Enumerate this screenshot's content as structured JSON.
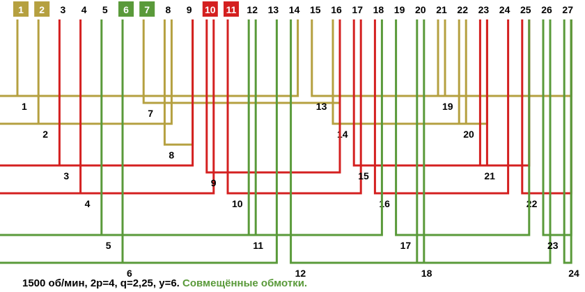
{
  "slots": [
    "1",
    "2",
    "3",
    "4",
    "5",
    "6",
    "7",
    "8",
    "9",
    "10",
    "11",
    "12",
    "13",
    "14",
    "15",
    "16",
    "17",
    "18",
    "19",
    "20",
    "21",
    "22",
    "23",
    "24",
    "25",
    "26",
    "27"
  ],
  "highlighted_slots": {
    "1": "#b5a040",
    "2": "#b5a040",
    "6": "#5a9a3a",
    "7": "#5a9a3a",
    "10": "#d42020",
    "11": "#d42020"
  },
  "colors": {
    "phase_a": "#b5a040",
    "phase_b": "#d42020",
    "phase_c": "#5a9a3a"
  },
  "coils": [
    {
      "label": "1",
      "phase": "a",
      "from": 1,
      "to": 14
    },
    {
      "label": "2",
      "phase": "a",
      "from": 2,
      "to": 8
    },
    {
      "label": "7",
      "phase": "a",
      "from": 7,
      "to": 16
    },
    {
      "label": "8",
      "phase": "a",
      "from": 8,
      "to": 9
    },
    {
      "label": "13",
      "phase": "a",
      "from": 15,
      "to": 21
    },
    {
      "label": "14",
      "phase": "a",
      "from": 16,
      "to": 22
    },
    {
      "label": "19",
      "phase": "a",
      "from": 21,
      "to": 27
    },
    {
      "label": "20",
      "phase": "a",
      "from": 22,
      "to": 23
    },
    {
      "label": "3",
      "phase": "b",
      "from": 3,
      "to": 9
    },
    {
      "label": "4",
      "phase": "b",
      "from": 4,
      "to": 10
    },
    {
      "label": "9",
      "phase": "b",
      "from": 10,
      "to": 16
    },
    {
      "label": "10",
      "phase": "b",
      "from": 11,
      "to": 17
    },
    {
      "label": "15",
      "phase": "b",
      "from": 17,
      "to": 23
    },
    {
      "label": "16",
      "phase": "b",
      "from": 18,
      "to": 24
    },
    {
      "label": "21",
      "phase": "b",
      "from": 23,
      "to": 25
    },
    {
      "label": "22",
      "phase": "b",
      "from": 25,
      "to": 27
    },
    {
      "label": "5",
      "phase": "c",
      "from": 5,
      "to": 12
    },
    {
      "label": "6",
      "phase": "c",
      "from": 6,
      "to": 13
    },
    {
      "label": "11",
      "phase": "c",
      "from": 12,
      "to": 18
    },
    {
      "label": "12",
      "phase": "c",
      "from": 14,
      "to": 20
    },
    {
      "label": "17",
      "phase": "c",
      "from": 19,
      "to": 25
    },
    {
      "label": "18",
      "phase": "c",
      "from": 20,
      "to": 26
    },
    {
      "label": "23",
      "phase": "c",
      "from": 26,
      "to": 27
    },
    {
      "label": "24",
      "phase": "c",
      "from": 27,
      "to": 27
    }
  ],
  "caption": {
    "main": "1500 об/мин, 2р=4, q=2,25, y=6.",
    "accent": "Совмещённые обмотки."
  }
}
